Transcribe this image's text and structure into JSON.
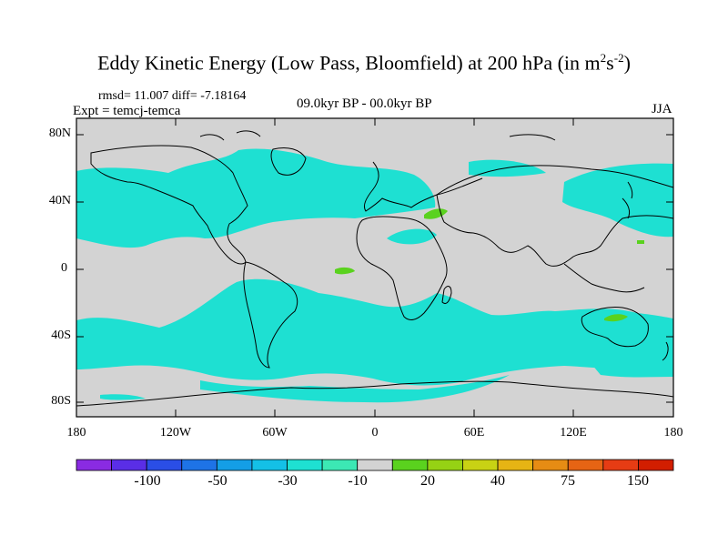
{
  "title": {
    "main": "Eddy Kinetic Energy (Low Pass, Bloomfield) at 200 hPa (in m",
    "sup1": "2",
    "mid": "s",
    "sup2": "-2",
    "end": ")"
  },
  "subtitle": {
    "stats": "rmsd= 11.007 diff= -7.18164",
    "experiment": "Expt = temcj-temca",
    "period": "09.0kyr BP - 00.0kyr BP",
    "season": "JJA"
  },
  "map": {
    "background_color": "#d3d3d3",
    "land_outline": "coastlines",
    "y_ticks": [
      "80N",
      "40N",
      "0",
      "40S",
      "80S"
    ],
    "x_ticks": [
      "180",
      "120W",
      "60W",
      "0",
      "60E",
      "120E",
      "180"
    ]
  },
  "colorbar": {
    "colors": [
      "#8a2be2",
      "#5a2ee6",
      "#2a4ee6",
      "#1e73e6",
      "#149ee6",
      "#14c0e6",
      "#1ee0d2",
      "#3ce8b4",
      "#d3d3d3",
      "#5ad21e",
      "#96d214",
      "#c8d214",
      "#e6b414",
      "#e68c14",
      "#e66414",
      "#e63c14",
      "#d21e00"
    ],
    "labels": [
      "-100",
      "-50",
      "-30",
      "-10",
      "20",
      "40",
      "75",
      "150"
    ]
  },
  "legend_colors": {
    "anomaly_cyan": "#1ee0d2",
    "anomaly_teal": "#3ce8b4",
    "anomaly_green": "#5ad21e"
  }
}
